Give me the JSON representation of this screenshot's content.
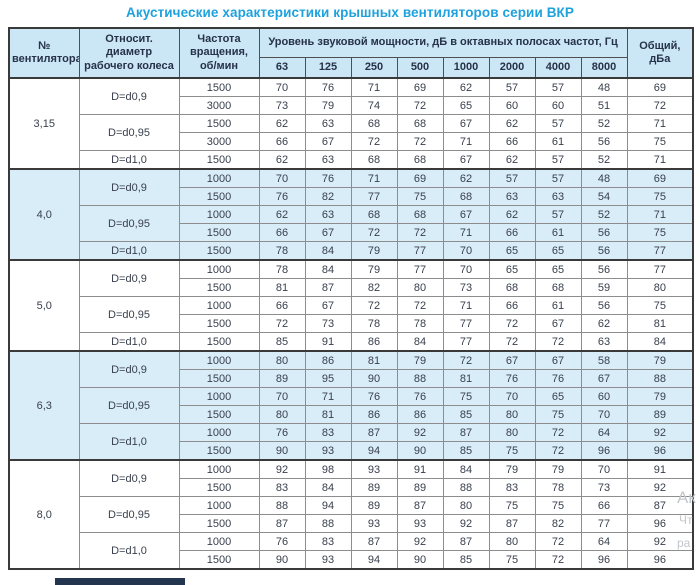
{
  "title": "Акустические характеристики крышных вентиляторов серии ВКР",
  "colors": {
    "title_accent": "#1ea2dd",
    "header_bg": "#cbe6f5",
    "shaded_band_bg": "#d9edf8",
    "border_dark": "#3a3a3a",
    "footer_bar": "#24364f"
  },
  "header": {
    "col_fan": "№ вентилятора",
    "col_diameter": "Относит. диаметр рабочего колеса",
    "col_rpm": "Частота вращения, об/мин",
    "col_spl": "Уровень звуковой мощности, дБ в октавных полосах частот, Гц",
    "frequencies": [
      "63",
      "125",
      "250",
      "500",
      "1000",
      "2000",
      "4000",
      "8000"
    ],
    "col_total": "Общий, дБа"
  },
  "groups": [
    {
      "fan": "3,15",
      "shaded": false,
      "subgroups": [
        {
          "diameter": "D=d0,9",
          "rows": [
            {
              "rpm": "1500",
              "levels": [
                70,
                76,
                71,
                69,
                62,
                57,
                57,
                48
              ],
              "total": "69"
            },
            {
              "rpm": "3000",
              "levels": [
                73,
                79,
                74,
                72,
                65,
                60,
                60,
                51
              ],
              "total": "72"
            }
          ]
        },
        {
          "diameter": "D=d0,95",
          "rows": [
            {
              "rpm": "1500",
              "levels": [
                62,
                63,
                68,
                68,
                67,
                62,
                57,
                52
              ],
              "total": "71"
            },
            {
              "rpm": "3000",
              "levels": [
                66,
                67,
                72,
                72,
                71,
                66,
                61,
                56
              ],
              "total": "75"
            }
          ]
        },
        {
          "diameter": "D=d1,0",
          "rows": [
            {
              "rpm": "1500",
              "levels": [
                62,
                63,
                68,
                68,
                67,
                62,
                57,
                52
              ],
              "total": "71"
            }
          ]
        }
      ]
    },
    {
      "fan": "4,0",
      "shaded": true,
      "subgroups": [
        {
          "diameter": "D=d0,9",
          "rows": [
            {
              "rpm": "1000",
              "levels": [
                70,
                76,
                71,
                69,
                62,
                57,
                57,
                48
              ],
              "total": "69"
            },
            {
              "rpm": "1500",
              "levels": [
                76,
                82,
                77,
                75,
                68,
                63,
                63,
                54
              ],
              "total": "75"
            }
          ]
        },
        {
          "diameter": "D=d0,95",
          "rows": [
            {
              "rpm": "1000",
              "levels": [
                62,
                63,
                68,
                68,
                67,
                62,
                57,
                52
              ],
              "total": "71"
            },
            {
              "rpm": "1500",
              "levels": [
                66,
                67,
                72,
                72,
                71,
                66,
                61,
                56
              ],
              "total": "75"
            }
          ]
        },
        {
          "diameter": "D=d1,0",
          "rows": [
            {
              "rpm": "1500",
              "levels": [
                78,
                84,
                79,
                77,
                70,
                65,
                65,
                56
              ],
              "total": "77"
            }
          ]
        }
      ]
    },
    {
      "fan": "5,0",
      "shaded": false,
      "subgroups": [
        {
          "diameter": "D=d0,9",
          "rows": [
            {
              "rpm": "1000",
              "levels": [
                78,
                84,
                79,
                77,
                70,
                65,
                65,
                56
              ],
              "total": "77"
            },
            {
              "rpm": "1500",
              "levels": [
                81,
                87,
                82,
                80,
                73,
                68,
                68,
                59
              ],
              "total": "80"
            }
          ]
        },
        {
          "diameter": "D=d0,95",
          "rows": [
            {
              "rpm": "1000",
              "levels": [
                66,
                67,
                72,
                72,
                71,
                66,
                61,
                56
              ],
              "total": "75"
            },
            {
              "rpm": "1500",
              "levels": [
                72,
                73,
                78,
                78,
                77,
                72,
                67,
                62
              ],
              "total": "81"
            }
          ]
        },
        {
          "diameter": "D=d1,0",
          "rows": [
            {
              "rpm": "1500",
              "levels": [
                85,
                91,
                86,
                84,
                77,
                72,
                72,
                63
              ],
              "total": "84"
            }
          ]
        }
      ]
    },
    {
      "fan": "6,3",
      "shaded": true,
      "subgroups": [
        {
          "diameter": "D=d0,9",
          "rows": [
            {
              "rpm": "1000",
              "levels": [
                80,
                86,
                81,
                79,
                72,
                67,
                67,
                58
              ],
              "total": "79"
            },
            {
              "rpm": "1500",
              "levels": [
                89,
                95,
                90,
                88,
                81,
                76,
                76,
                67
              ],
              "total": "88"
            }
          ]
        },
        {
          "diameter": "D=d0,95",
          "rows": [
            {
              "rpm": "1000",
              "levels": [
                70,
                71,
                76,
                76,
                75,
                70,
                65,
                60
              ],
              "total": "79"
            },
            {
              "rpm": "1500",
              "levels": [
                80,
                81,
                86,
                86,
                85,
                80,
                75,
                70
              ],
              "total": "89"
            }
          ]
        },
        {
          "diameter": "D=d1,0",
          "rows": [
            {
              "rpm": "1000",
              "levels": [
                76,
                83,
                87,
                92,
                87,
                80,
                72,
                64
              ],
              "total": "92"
            },
            {
              "rpm": "1500",
              "levels": [
                90,
                93,
                94,
                90,
                85,
                75,
                72,
                96
              ],
              "total": "96"
            }
          ]
        }
      ]
    },
    {
      "fan": "8,0",
      "shaded": false,
      "subgroups": [
        {
          "diameter": "D=d0,9",
          "rows": [
            {
              "rpm": "1000",
              "levels": [
                92,
                98,
                93,
                91,
                84,
                79,
                79,
                70
              ],
              "total": "91"
            },
            {
              "rpm": "1500",
              "levels": [
                83,
                84,
                89,
                89,
                88,
                83,
                78,
                73
              ],
              "total": "92"
            }
          ]
        },
        {
          "diameter": "D=d0,95",
          "rows": [
            {
              "rpm": "1000",
              "levels": [
                88,
                94,
                89,
                87,
                80,
                75,
                75,
                66
              ],
              "total": "87"
            },
            {
              "rpm": "1500",
              "levels": [
                87,
                88,
                93,
                93,
                92,
                87,
                82,
                77
              ],
              "total": "96"
            }
          ]
        },
        {
          "diameter": "D=d1,0",
          "rows": [
            {
              "rpm": "1000",
              "levels": [
                76,
                83,
                87,
                92,
                87,
                80,
                72,
                64
              ],
              "total": "92"
            },
            {
              "rpm": "1500",
              "levels": [
                90,
                93,
                94,
                90,
                85,
                75,
                72,
                96
              ],
              "total": "96"
            }
          ]
        }
      ]
    }
  ],
  "watermark": {
    "fragment1": "Ак",
    "fragment2": "Чт",
    "fragment3": "ра"
  }
}
